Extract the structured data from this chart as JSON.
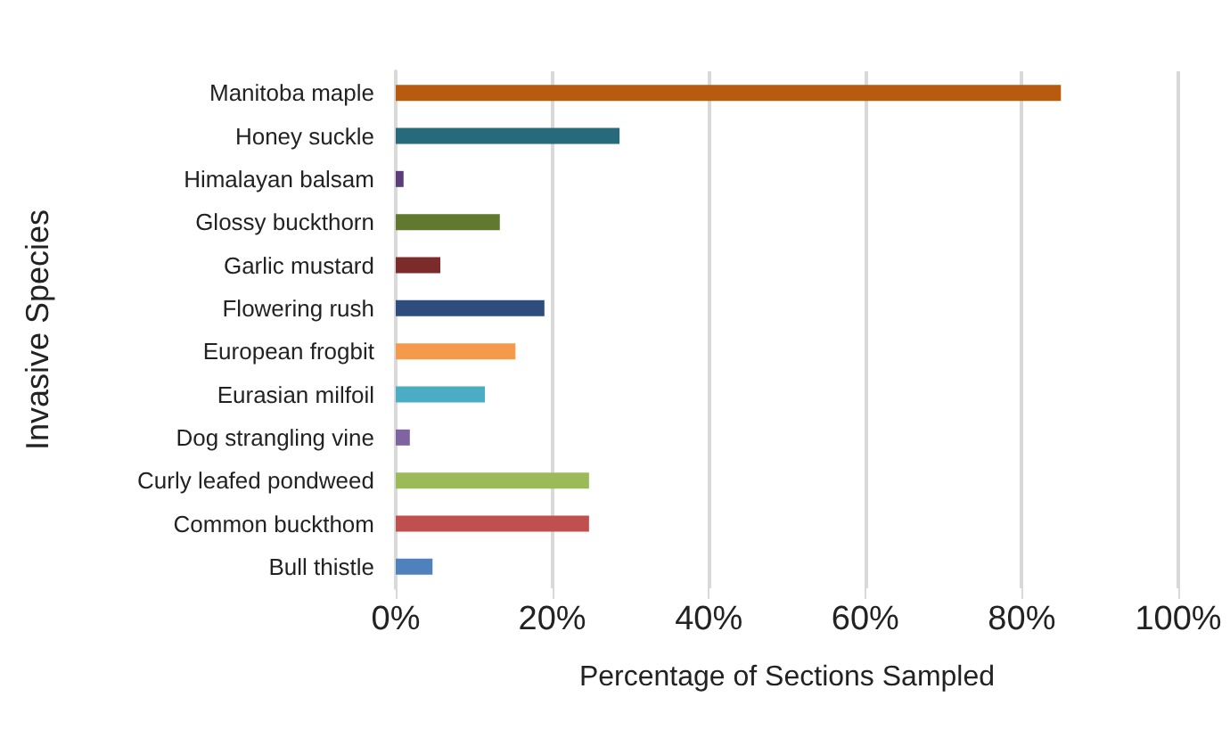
{
  "chart_data": {
    "type": "bar",
    "orientation": "horizontal",
    "xlabel": "Percentage of Sections Sampled",
    "ylabel": "Invasive Species",
    "categories": [
      "Manitoba maple",
      "Honey suckle",
      "Himalayan balsam",
      "Glossy buckthorn",
      "Garlic mustard",
      "Flowering rush",
      "European frogbit",
      "Eurasian milfoil",
      "Dog strangling vine",
      "Curly leafed pondweed",
      "Common buckthom",
      "Bull thistle"
    ],
    "values": [
      85,
      28.6,
      1,
      13.3,
      5.7,
      19,
      15.3,
      11.4,
      1.8,
      24.7,
      24.7,
      4.7
    ],
    "colors": [
      "#b95b0e",
      "#276a7c",
      "#5a3d7a",
      "#61782f",
      "#7a2b2a",
      "#2e4d7c",
      "#f59a4a",
      "#4bacc6",
      "#8064a2",
      "#9bbb59",
      "#c0504d",
      "#4f81bd"
    ],
    "xlim": [
      0,
      100
    ],
    "xticks": [
      {
        "value": 0,
        "label": "0%"
      },
      {
        "value": 20,
        "label": "20%"
      },
      {
        "value": 40,
        "label": "40%"
      },
      {
        "value": 60,
        "label": "60%"
      },
      {
        "value": 80,
        "label": "80%"
      },
      {
        "value": 100,
        "label": "100%"
      }
    ],
    "grid": "x"
  }
}
